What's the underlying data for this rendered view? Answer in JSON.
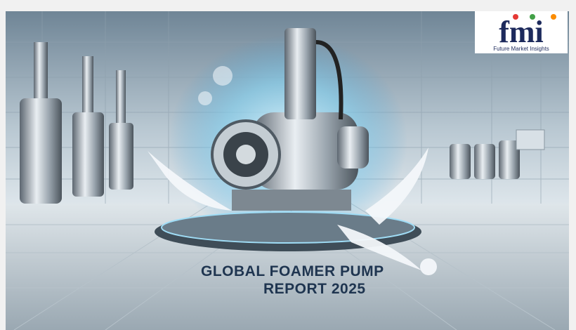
{
  "logo": {
    "mark": "fmi",
    "name": "Future Market Insights"
  },
  "title": {
    "line1": "GLOBAL FOAMER PUMP",
    "line2": "REPORT 2025"
  }
}
